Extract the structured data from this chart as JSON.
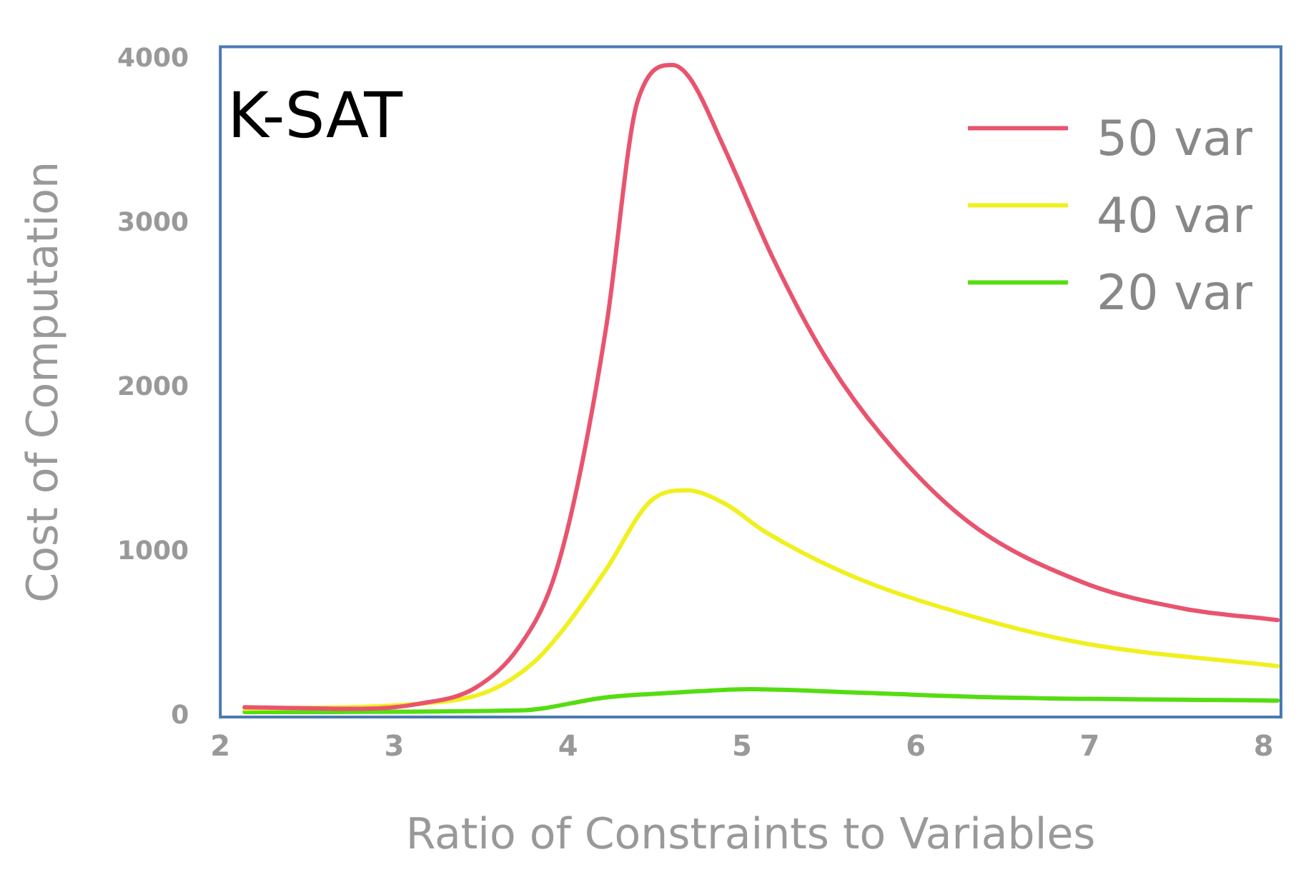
{
  "chart_data": {
    "type": "line",
    "title": "K-SAT",
    "xlabel": "Ratio of Constraints to Variables",
    "ylabel": "Cost of Computation",
    "xlim": [
      2,
      8.1
    ],
    "xticks": [
      2,
      3,
      4,
      5,
      6,
      7,
      8
    ],
    "ylim": [
      0,
      4080
    ],
    "yticks": [
      0,
      1000,
      2000,
      3000,
      4000
    ],
    "grid": false,
    "legend": "top right",
    "marker": "none",
    "line_style": "solid",
    "series": [
      {
        "name": "50 var",
        "color": "#e8546e",
        "x": [
          2.14,
          2.8,
          3.14,
          3.47,
          3.72,
          3.91,
          4.05,
          4.22,
          4.4,
          4.6,
          4.7,
          4.9,
          5.18,
          5.47,
          5.8,
          6.3,
          6.96,
          7.54,
          8.08
        ],
        "values": [
          60,
          50,
          80,
          180,
          430,
          820,
          1390,
          2380,
          3750,
          3970,
          3890,
          3460,
          2790,
          2210,
          1720,
          1190,
          820,
          660,
          590
        ]
      },
      {
        "name": "40 var",
        "color": "#f0f020",
        "x": [
          2.14,
          3.14,
          3.55,
          3.8,
          3.97,
          4.22,
          4.47,
          4.68,
          4.9,
          5.13,
          5.63,
          6.3,
          6.96,
          8.08
        ],
        "values": [
          50,
          80,
          160,
          330,
          530,
          900,
          1310,
          1380,
          1300,
          1130,
          860,
          620,
          450,
          310
        ]
      },
      {
        "name": "20 var",
        "color": "#55dd11",
        "x": [
          2.14,
          3.72,
          4.22,
          4.64,
          5.05,
          5.63,
          6.46,
          8.08
        ],
        "values": [
          30,
          40,
          120,
          150,
          170,
          150,
          120,
          100
        ]
      }
    ]
  }
}
